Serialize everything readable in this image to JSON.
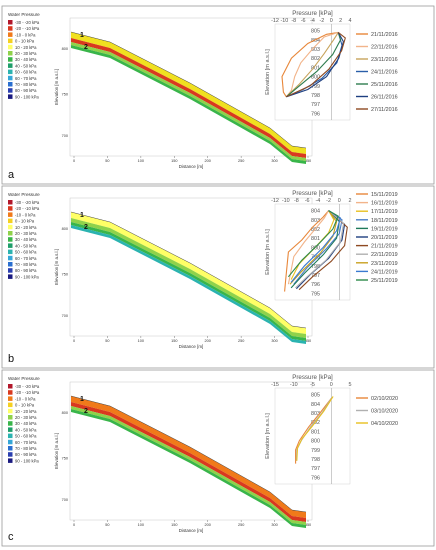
{
  "chart_data": [
    {
      "type": "line",
      "panel_label": "a",
      "profile": {
        "legend_title": "Water Pressure",
        "legend_items": [
          "-30 - -20 kPa",
          "-20 - -10 kPa",
          "-10 - 0 kPa",
          "0 - 10 kPa",
          "10 - 20 kPa",
          "20 - 30 kPa",
          "30 - 40 kPa",
          "40 - 50 kPa",
          "50 - 60 kPa",
          "60 - 70 kPa",
          "70 - 80 kPa",
          "80 - 90 kPa",
          "90 - 100 kPa"
        ],
        "legend_colors": [
          "#b2182b",
          "#d9391f",
          "#f07a1a",
          "#f5d020",
          "#ffff66",
          "#8fd24a",
          "#39b54a",
          "#1f9e6a",
          "#2bb3b0",
          "#35a7d8",
          "#2b6fd0",
          "#2a3fb0",
          "#1a1a80"
        ],
        "xlabel": "Distance [m]",
        "ylabel": "Elevation [m a.s.l.]",
        "x_ticks": [
          "0",
          "50",
          "100",
          "150",
          "200",
          "250",
          "300",
          "350"
        ],
        "y_ticks": [
          "800",
          "750",
          "700"
        ],
        "markers": [
          "1",
          "2"
        ],
        "band_colors": [
          "#f0e020",
          "#d9391f",
          "#8fd24a",
          "#39b54a"
        ]
      },
      "title": "Pressure [kPa]",
      "ylabel": "Elevation [m a.s.l.]",
      "x_ticks": [
        "-12",
        "-10",
        "-8",
        "-6",
        "-4",
        "-2",
        "0",
        "2",
        "4"
      ],
      "y_ticks": [
        "805",
        "804",
        "803",
        "802",
        "801",
        "800",
        "799",
        "798",
        "797",
        "796"
      ],
      "xlim": [
        -12,
        4
      ],
      "ylim": [
        795.5,
        805.5
      ],
      "series": [
        {
          "name": "21/11/2016",
          "color": "#e8873a",
          "points": [
            [
              1.5,
              804.8
            ],
            [
              -1,
              804.6
            ],
            [
              -5,
              803.6
            ],
            [
              -8.5,
              802.0
            ],
            [
              -10.5,
              800.0
            ],
            [
              -10.2,
              798.3
            ],
            [
              -9.6,
              797.8
            ]
          ]
        },
        {
          "name": "22/11/2016",
          "color": "#f2b48a",
          "points": [
            [
              1.5,
              804.8
            ],
            [
              -1.5,
              804.3
            ],
            [
              -4,
              803.0
            ],
            [
              -6.5,
              801.5
            ],
            [
              -7.8,
              800.0
            ],
            [
              -8.5,
              798.5
            ],
            [
              -9.6,
              797.8
            ]
          ]
        },
        {
          "name": "23/11/2016",
          "color": "#c8a45c",
          "points": [
            [
              1.5,
              804.8
            ],
            [
              0.5,
              804.0
            ],
            [
              -1.5,
              802.5
            ],
            [
              -4,
              800.8
            ],
            [
              -6.8,
              799.2
            ],
            [
              -9.6,
              797.8
            ]
          ]
        },
        {
          "name": "24/11/2016",
          "color": "#2a5ea8",
          "points": [
            [
              1.5,
              804.8
            ],
            [
              2.3,
              803.4
            ],
            [
              1.2,
              801.5
            ],
            [
              -2,
              799.8
            ],
            [
              -6,
              798.6
            ],
            [
              -9.6,
              797.8
            ]
          ]
        },
        {
          "name": "25/11/2016",
          "color": "#2e7d4f",
          "points": [
            [
              1.5,
              804.8
            ],
            [
              2.0,
              804.0
            ],
            [
              0.3,
              802.4
            ],
            [
              -3,
              800.6
            ],
            [
              -7,
              798.9
            ],
            [
              -9.6,
              797.8
            ]
          ]
        },
        {
          "name": "26/11/2016",
          "color": "#1e3f80",
          "points": [
            [
              1.5,
              804.8
            ],
            [
              2.6,
              803.8
            ],
            [
              1.6,
              802.0
            ],
            [
              -1,
              800.0
            ],
            [
              -5,
              798.6
            ],
            [
              -9.6,
              797.8
            ]
          ]
        },
        {
          "name": "27/11/2016",
          "color": "#8e4a22",
          "points": [
            [
              1.5,
              804.8
            ],
            [
              3.0,
              804.2
            ],
            [
              2.2,
              802.8
            ],
            [
              -0.5,
              800.8
            ],
            [
              -4.5,
              799.0
            ],
            [
              -9.6,
              797.8
            ]
          ]
        }
      ]
    },
    {
      "type": "line",
      "panel_label": "b",
      "profile": {
        "legend_title": "Water Pressure",
        "legend_items": [
          "-30 - -20 kPa",
          "-20 - -10 kPa",
          "-10 - 0 kPa",
          "0 - 10 kPa",
          "10 - 20 kPa",
          "20 - 30 kPa",
          "30 - 40 kPa",
          "40 - 50 kPa",
          "50 - 60 kPa",
          "60 - 70 kPa",
          "70 - 80 kPa",
          "80 - 90 kPa",
          "90 - 100 kPa"
        ],
        "legend_colors": [
          "#b2182b",
          "#d9391f",
          "#f07a1a",
          "#f5d020",
          "#ffff66",
          "#8fd24a",
          "#39b54a",
          "#1f9e6a",
          "#2bb3b0",
          "#35a7d8",
          "#2b6fd0",
          "#2a3fb0",
          "#1a1a80"
        ],
        "xlabel": "Distance [m]",
        "ylabel": "Elevation [m a.s.l.]",
        "x_ticks": [
          "0",
          "50",
          "100",
          "150",
          "200",
          "250",
          "300",
          "350"
        ],
        "y_ticks": [
          "800",
          "750",
          "700"
        ],
        "markers": [
          "1",
          "2"
        ],
        "band_colors": [
          "#ffff66",
          "#8fd24a",
          "#39b54a",
          "#2bb3b0"
        ]
      },
      "title": "Pressure [kPa]",
      "ylabel": "Elevation [m a.s.l.]",
      "x_ticks": [
        "-12",
        "-10",
        "-8",
        "-6",
        "-4",
        "-2",
        "0",
        "2"
      ],
      "y_ticks": [
        "804",
        "803",
        "802",
        "801",
        "800",
        "799",
        "798",
        "797",
        "796",
        "795"
      ],
      "xlim": [
        -12,
        2
      ],
      "ylim": [
        794.5,
        804.5
      ],
      "series": [
        {
          "name": "15/11/2019",
          "color": "#e8873a",
          "points": [
            [
              -2,
              804
            ],
            [
              -3,
              803.3
            ],
            [
              -5,
              802.2
            ],
            [
              -7,
              800.8
            ],
            [
              -9.5,
              799.5
            ],
            [
              -10,
              796.5
            ],
            [
              -10.2,
              795.2
            ]
          ]
        },
        {
          "name": "16/11/2019",
          "color": "#f2b48a",
          "points": [
            [
              -2,
              804
            ],
            [
              -2.8,
              803.2
            ],
            [
              -4.5,
              802.0
            ],
            [
              -6.5,
              800.6
            ],
            [
              -8.5,
              799.0
            ],
            [
              -9.5,
              796.0
            ]
          ]
        },
        {
          "name": "17/11/2019",
          "color": "#e8c020",
          "points": [
            [
              -2,
              804
            ],
            [
              -1,
              803.0
            ],
            [
              -2,
              801.6
            ],
            [
              -4.5,
              800.0
            ],
            [
              -7.5,
              798.2
            ],
            [
              -9,
              796.5
            ]
          ]
        },
        {
          "name": "18/11/2019",
          "color": "#4a7ec8",
          "points": [
            [
              -2,
              804
            ],
            [
              0.5,
              803.0
            ],
            [
              0,
              801.5
            ],
            [
              -2.5,
              799.8
            ],
            [
              -6,
              797.8
            ],
            [
              -8.5,
              796.0
            ]
          ]
        },
        {
          "name": "19/11/2019",
          "color": "#1f7a5a",
          "points": [
            [
              -2,
              804
            ],
            [
              0,
              802.8
            ],
            [
              -0.5,
              801.0
            ],
            [
              -3,
              799.2
            ],
            [
              -6.5,
              797.2
            ],
            [
              -9,
              795.6
            ]
          ]
        },
        {
          "name": "20/11/2019",
          "color": "#1e3f80",
          "points": [
            [
              -2,
              804
            ],
            [
              1,
              802.5
            ],
            [
              0.5,
              800.8
            ],
            [
              -2,
              798.8
            ],
            [
              -5.5,
              797.0
            ],
            [
              -8,
              795.5
            ]
          ]
        },
        {
          "name": "21/11/2019",
          "color": "#8e4a22",
          "points": [
            [
              -2,
              804
            ],
            [
              1.5,
              802.2
            ],
            [
              1.0,
              800.2
            ],
            [
              -1.5,
              798.5
            ],
            [
              -5,
              796.8
            ],
            [
              -7.5,
              795.4
            ]
          ]
        },
        {
          "name": "22/11/2019",
          "color": "#b0b0b0",
          "points": [
            [
              -2,
              804
            ],
            [
              0.8,
              802.6
            ],
            [
              0.2,
              800.6
            ],
            [
              -2.5,
              798.6
            ],
            [
              -6,
              796.8
            ],
            [
              -8.2,
              795.6
            ]
          ]
        },
        {
          "name": "23/11/2019",
          "color": "#c8a020",
          "points": [
            [
              -2,
              804
            ],
            [
              -0.5,
              802.8
            ],
            [
              -1.2,
              801.2
            ],
            [
              -3.5,
              799.4
            ],
            [
              -7,
              797.4
            ],
            [
              -9.2,
              796.0
            ]
          ]
        },
        {
          "name": "24/11/2019",
          "color": "#3a7ad0",
          "points": [
            [
              -2,
              804
            ],
            [
              0.2,
              803.2
            ],
            [
              -0.5,
              801.8
            ],
            [
              -3,
              800.0
            ],
            [
              -6.5,
              798.0
            ],
            [
              -9,
              796.2
            ]
          ]
        },
        {
          "name": "25/11/2019",
          "color": "#2e8a4a",
          "points": [
            [
              -2,
              804
            ],
            [
              -0.2,
              803.4
            ],
            [
              -1.2,
              802.0
            ],
            [
              -3.8,
              800.4
            ],
            [
              -7,
              798.6
            ],
            [
              -9.5,
              796.8
            ]
          ]
        }
      ]
    },
    {
      "type": "line",
      "panel_label": "c",
      "profile": {
        "legend_title": "Water Pressure",
        "legend_items": [
          "-30 - -20 kPa",
          "-20 - -10 kPa",
          "-10 - 0 kPa",
          "0 - 10 kPa",
          "10 - 20 kPa",
          "20 - 30 kPa",
          "30 - 40 kPa",
          "40 - 50 kPa",
          "50 - 60 kPa",
          "60 - 70 kPa",
          "70 - 80 kPa",
          "80 - 90 kPa",
          "90 - 100 kPa"
        ],
        "legend_colors": [
          "#b2182b",
          "#d9391f",
          "#f07a1a",
          "#f5d020",
          "#ffff66",
          "#8fd24a",
          "#39b54a",
          "#1f9e6a",
          "#2bb3b0",
          "#35a7d8",
          "#2b6fd0",
          "#2a3fb0",
          "#1a1a80"
        ],
        "xlabel": "Distance [m]",
        "ylabel": "Elevation [m a.s.l.]",
        "x_ticks": [
          "0",
          "50",
          "100",
          "150",
          "200",
          "250",
          "300",
          "350"
        ],
        "y_ticks": [
          "800",
          "750",
          "700"
        ],
        "markers": [
          "1",
          "2"
        ],
        "band_colors": [
          "#f07a1a",
          "#d9391f",
          "#8fd24a",
          "#39b54a"
        ]
      },
      "title": "Pressure [kPa]",
      "ylabel": "Elevation [m a.s.l.]",
      "x_ticks": [
        "-15",
        "-10",
        "-5",
        "0",
        "5"
      ],
      "y_ticks": [
        "805",
        "804",
        "803",
        "802",
        "801",
        "800",
        "799",
        "798",
        "797",
        "796"
      ],
      "xlim": [
        -15,
        5
      ],
      "ylim": [
        795.5,
        805.5
      ],
      "series": [
        {
          "name": "02/10/2020",
          "color": "#e8873a",
          "points": [
            [
              0,
              804.6
            ],
            [
              -3,
              803.0
            ],
            [
              -6,
              801.5
            ],
            [
              -8.5,
              800.0
            ],
            [
              -9.5,
              799.0
            ],
            [
              -9.5,
              797.5
            ]
          ]
        },
        {
          "name": "03/10/2020",
          "color": "#b0b0b0",
          "points": [
            [
              0,
              804.6
            ],
            [
              -2.5,
              803.0
            ],
            [
              -5.5,
              801.5
            ],
            [
              -8,
              800.0
            ],
            [
              -9.2,
              799.0
            ],
            [
              -9.3,
              797.8
            ]
          ]
        },
        {
          "name": "04/10/2020",
          "color": "#e8c020",
          "points": [
            [
              0.5,
              804.8
            ],
            [
              -2,
              803.2
            ],
            [
              -5,
              801.6
            ],
            [
              -7.8,
              800.2
            ],
            [
              -9,
              799.2
            ],
            [
              -9.2,
              797.8
            ]
          ]
        }
      ]
    }
  ]
}
